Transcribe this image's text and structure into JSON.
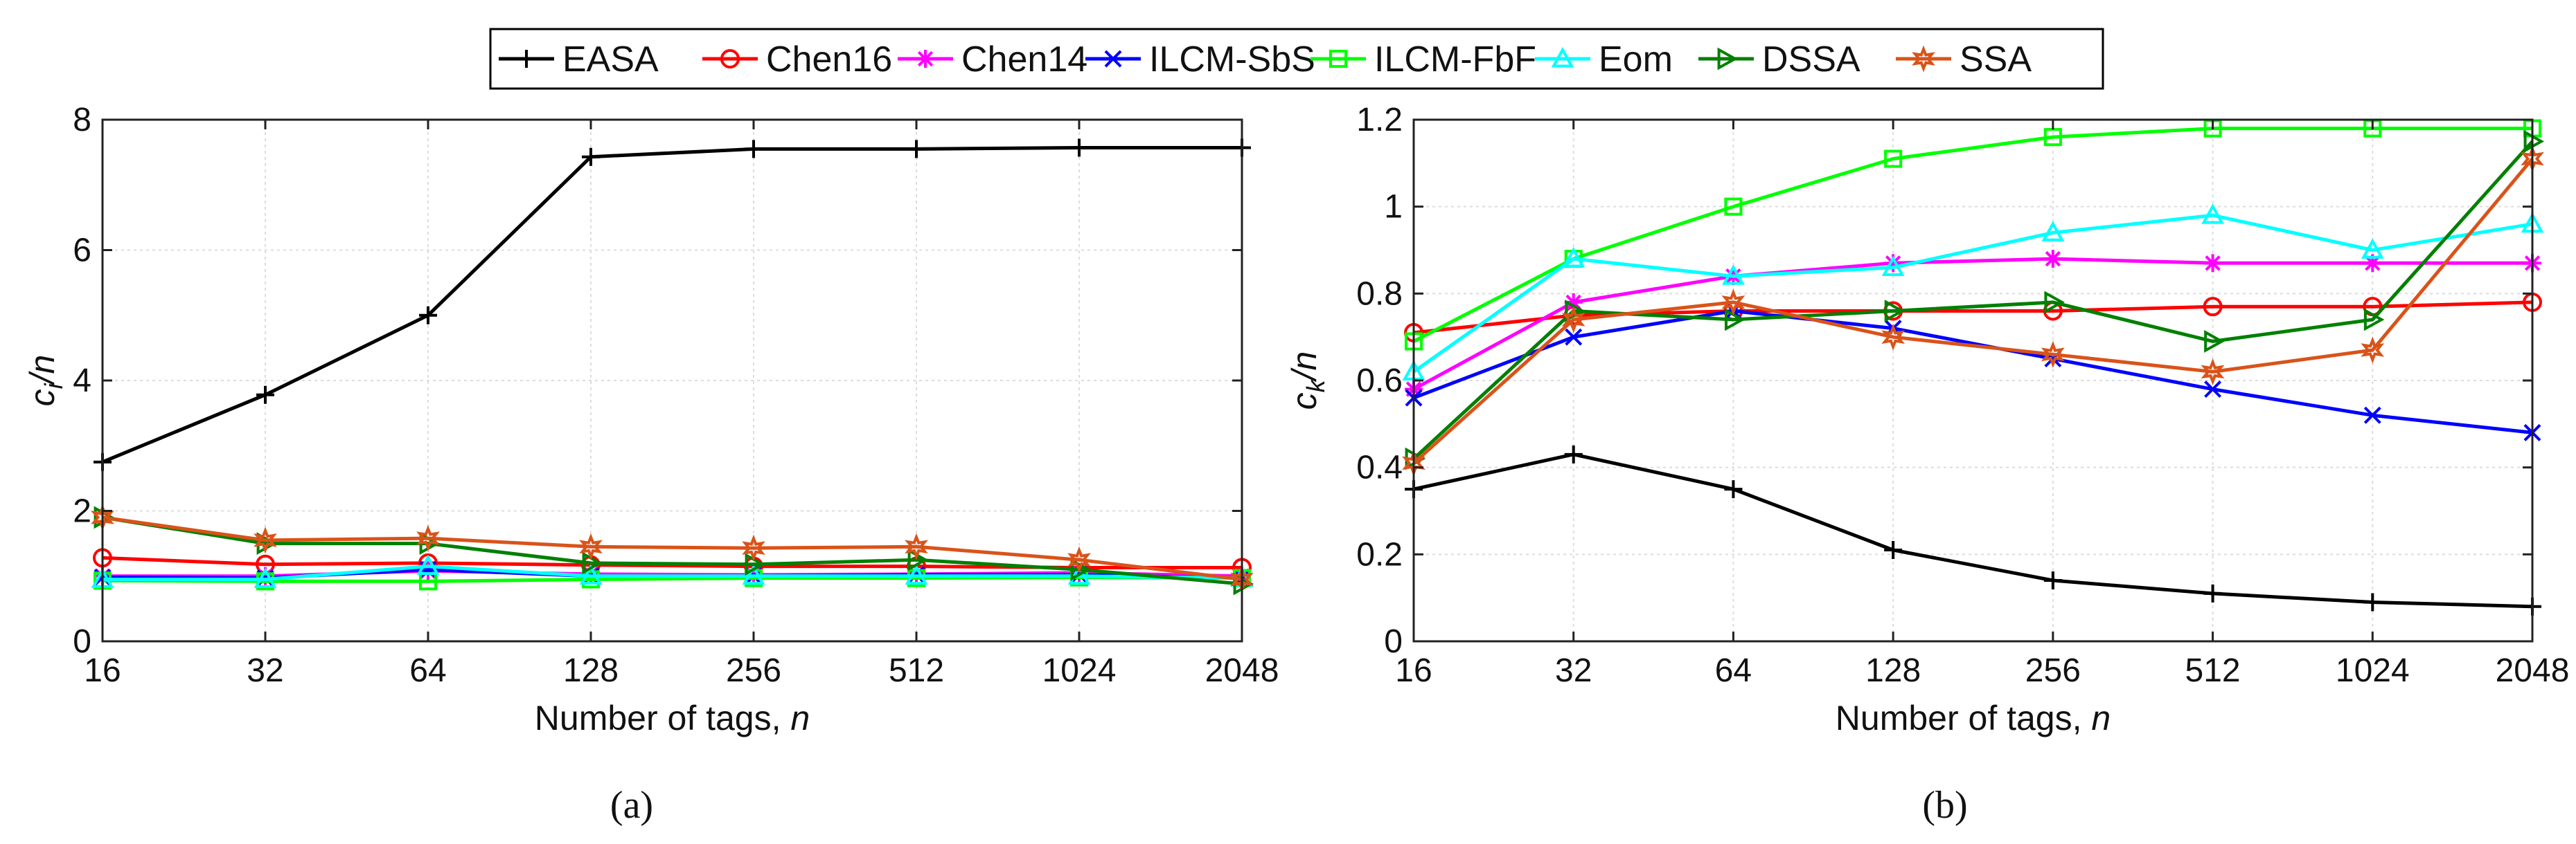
{
  "legend": [
    {
      "name": "EASA",
      "color": "#000000",
      "marker": "plus"
    },
    {
      "name": "Chen16",
      "color": "#ff0000",
      "marker": "circle"
    },
    {
      "name": "Chen14",
      "color": "#ff00ff",
      "marker": "star"
    },
    {
      "name": "ILCM-SbS",
      "color": "#0000ff",
      "marker": "x"
    },
    {
      "name": "ILCM-FbF",
      "color": "#00ff00",
      "marker": "square"
    },
    {
      "name": "Eom",
      "color": "#00ffff",
      "marker": "triangle"
    },
    {
      "name": "DSSA",
      "color": "#008000",
      "marker": "right-triangle"
    },
    {
      "name": "SSA",
      "color": "#d95319",
      "marker": "hexagram"
    }
  ],
  "chart_data": [
    {
      "type": "line",
      "panel": "a",
      "caption": "(a)",
      "ylabel_main": "c",
      "ylabel_sub": "i",
      "ylabel_rest": "/n",
      "xlabel_main": "Number of tags, ",
      "xlabel_var": "n",
      "categories": [
        "16",
        "32",
        "64",
        "128",
        "256",
        "512",
        "1024",
        "2048"
      ],
      "ylim": [
        0,
        8
      ],
      "yticks": [
        "0",
        "2",
        "4",
        "6",
        "8"
      ],
      "grid": true,
      "series": [
        {
          "name": "EASA",
          "values": [
            2.75,
            3.78,
            5.0,
            7.43,
            7.55,
            7.55,
            7.57,
            7.57
          ]
        },
        {
          "name": "Chen16",
          "values": [
            1.28,
            1.18,
            1.2,
            1.17,
            1.15,
            1.15,
            1.13,
            1.13
          ]
        },
        {
          "name": "Chen14",
          "values": [
            1.0,
            1.0,
            1.08,
            1.03,
            1.02,
            1.03,
            1.05,
            1.0
          ]
        },
        {
          "name": "ILCM-SbS",
          "values": [
            0.98,
            0.97,
            1.1,
            1.0,
            1.0,
            1.02,
            1.02,
            0.97
          ]
        },
        {
          "name": "ILCM-FbF",
          "values": [
            0.93,
            0.92,
            0.92,
            0.95,
            0.97,
            0.97,
            0.98,
            0.97
          ]
        },
        {
          "name": "Eom",
          "values": [
            0.95,
            0.95,
            1.15,
            1.0,
            1.0,
            1.0,
            1.0,
            0.97
          ]
        },
        {
          "name": "DSSA",
          "values": [
            1.9,
            1.5,
            1.5,
            1.2,
            1.18,
            1.25,
            1.1,
            0.88
          ]
        },
        {
          "name": "SSA",
          "values": [
            1.9,
            1.55,
            1.58,
            1.45,
            1.43,
            1.45,
            1.25,
            0.95
          ]
        }
      ]
    },
    {
      "type": "line",
      "panel": "b",
      "caption": "(b)",
      "ylabel_main": "c",
      "ylabel_sub": "k",
      "ylabel_rest": "/n",
      "xlabel_main": "Number of tags, ",
      "xlabel_var": "n",
      "categories": [
        "16",
        "32",
        "64",
        "128",
        "256",
        "512",
        "1024",
        "2048"
      ],
      "ylim": [
        0,
        1.2
      ],
      "yticks": [
        "0",
        "0.2",
        "0.4",
        "0.6",
        "0.8",
        "1",
        "1.2"
      ],
      "grid": true,
      "series": [
        {
          "name": "EASA",
          "values": [
            0.35,
            0.43,
            0.35,
            0.21,
            0.14,
            0.11,
            0.09,
            0.08
          ]
        },
        {
          "name": "Chen16",
          "values": [
            0.71,
            0.75,
            0.76,
            0.76,
            0.76,
            0.77,
            0.77,
            0.78
          ]
        },
        {
          "name": "Chen14",
          "values": [
            0.58,
            0.78,
            0.84,
            0.87,
            0.88,
            0.87,
            0.87,
            0.87
          ]
        },
        {
          "name": "ILCM-SbS",
          "values": [
            0.56,
            0.7,
            0.76,
            0.72,
            0.65,
            0.58,
            0.52,
            0.48
          ]
        },
        {
          "name": "ILCM-FbF",
          "values": [
            0.69,
            0.88,
            1.0,
            1.11,
            1.16,
            1.18,
            1.18,
            1.18
          ]
        },
        {
          "name": "Eom",
          "values": [
            0.62,
            0.88,
            0.84,
            0.86,
            0.94,
            0.98,
            0.9,
            0.96
          ]
        },
        {
          "name": "DSSA",
          "values": [
            0.42,
            0.76,
            0.74,
            0.76,
            0.78,
            0.69,
            0.74,
            1.15
          ]
        },
        {
          "name": "SSA",
          "values": [
            0.41,
            0.74,
            0.78,
            0.7,
            0.66,
            0.62,
            0.67,
            1.11
          ]
        }
      ]
    }
  ]
}
